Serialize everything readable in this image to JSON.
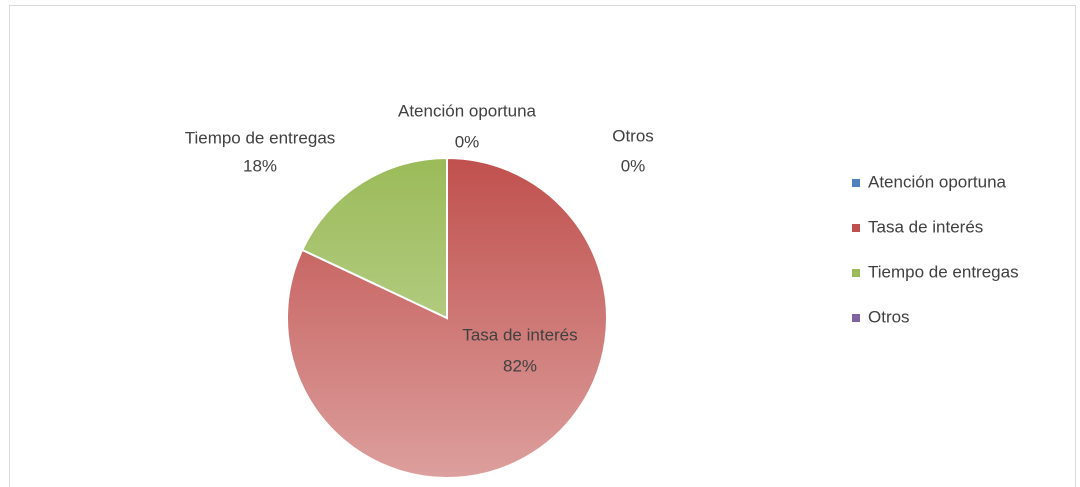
{
  "chart_data": {
    "type": "pie",
    "categories": [
      "Atención oportuna",
      "Tasa de interés",
      "Tiempo de entregas",
      "Otros"
    ],
    "values": [
      0,
      82,
      18,
      0
    ],
    "value_labels": [
      "0%",
      "82%",
      "18%",
      "0%"
    ],
    "colors": [
      "#4f81bd",
      "#c0504d",
      "#9bbb59",
      "#8064a2"
    ],
    "legend": "right"
  }
}
